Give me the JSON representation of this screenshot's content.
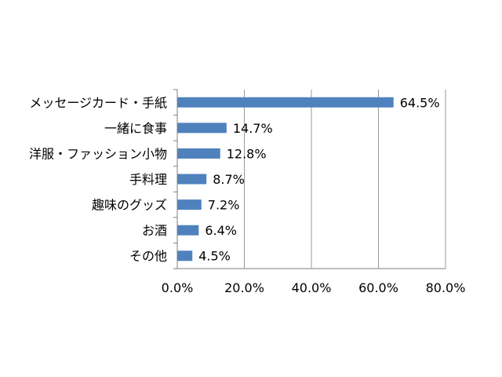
{
  "chart_data": {
    "type": "bar",
    "orientation": "horizontal",
    "categories": [
      "メッセージカード・手紙",
      "一緒に食事",
      "洋服・ファッション小物",
      "手料理",
      "趣味のグッズ",
      "お酒",
      "その他"
    ],
    "values": [
      64.5,
      14.7,
      12.8,
      8.7,
      7.2,
      6.4,
      4.5
    ],
    "data_labels": [
      "64.5%",
      "14.7%",
      "12.8%",
      "8.7%",
      "7.2%",
      "6.4%",
      "4.5%"
    ],
    "x_ticks": [
      0,
      20,
      40,
      60,
      80
    ],
    "x_tick_labels": [
      "0.0%",
      "20.0%",
      "40.0%",
      "60.0%",
      "80.0%"
    ],
    "xlim": [
      0,
      80
    ],
    "title": "",
    "xlabel": "",
    "ylabel": "",
    "grid": "vertical",
    "legend": "none",
    "bar_color": "#4f81bd",
    "grid_color": "#999999",
    "axis_color": "#7f7f7f"
  }
}
